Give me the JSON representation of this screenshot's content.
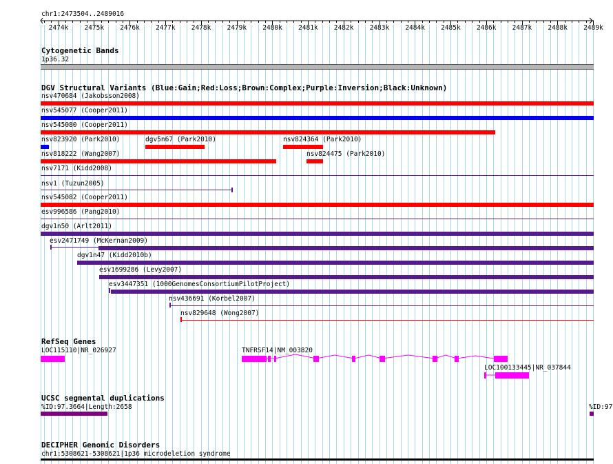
{
  "ruler": {
    "region_label": "chr1:2473504..2489016",
    "start": 2473504,
    "end": 2489016,
    "ticks": [
      "2474k",
      "2475k",
      "2476k",
      "2477k",
      "2478k",
      "2479k",
      "2480k",
      "2481k",
      "2482k",
      "2483k",
      "2484k",
      "2485k",
      "2486k",
      "2487k",
      "2488k",
      "2489k"
    ]
  },
  "tracks": {
    "cyto": {
      "title": "Cytogenetic Bands",
      "band_label": "1p36.32"
    },
    "dgv": {
      "title": "DGV Structural Variants (Blue:Gain;Red:Loss;Brown:Complex;Purple:Inversion;Black:Unknown)",
      "colors": {
        "gain": "#0000ee",
        "loss": "#ff0000",
        "inversion": "#551a8b"
      },
      "features": [
        {
          "label": "nsv470684 (Jakobsson2008)",
          "type": "loss"
        },
        {
          "label": "nsv545077 (Cooper2011)",
          "type": "gain"
        },
        {
          "label": "nsv545080 (Cooper2011)",
          "type": "loss"
        },
        {
          "label": "nsv823920 (Park2010)",
          "type": "gain"
        },
        {
          "label": "dgv5n67 (Park2010)",
          "type": "loss"
        },
        {
          "label": "nsv824364 (Park2010)",
          "type": "loss"
        },
        {
          "label": "nsv818222 (Wang2007)",
          "type": "loss"
        },
        {
          "label": "nsv824475 (Park2010)",
          "type": "loss"
        },
        {
          "label": "nsv7171 (Kidd2008)",
          "type": "inversion"
        },
        {
          "label": "nsv1 (Tuzun2005)",
          "type": "inversion"
        },
        {
          "label": "nsv545082 (Cooper2011)",
          "type": "loss"
        },
        {
          "label": "esv996586 (Pang2010)",
          "type": "inversion"
        },
        {
          "label": "dgv1n50 (Arlt2011)",
          "type": "inversion"
        },
        {
          "label": "esv2471749 (McKernan2009)",
          "type": "inversion"
        },
        {
          "label": "dgv1n47 (Kidd2010b)",
          "type": "inversion"
        },
        {
          "label": "esv1699286 (Levy2007)",
          "type": "inversion"
        },
        {
          "label": "esv3447351 (1000GenomesConsortiumPilotProject)",
          "type": "inversion"
        },
        {
          "label": "nsv436691 (Korbel2007)",
          "type": "inversion"
        },
        {
          "label": "nsv829648 (Wong2007)",
          "type": "loss"
        }
      ]
    },
    "refseq": {
      "title": "RefSeq Genes",
      "color": "#ff00ff",
      "genes": [
        {
          "label": "LOC115110|NR_026927"
        },
        {
          "label": "TNFRSF14|NM_003820"
        },
        {
          "label": "LOC100133445|NR_037844"
        }
      ]
    },
    "segdup": {
      "title": "UCSC segmental duplications",
      "color": "#800080",
      "features": [
        {
          "label": "%ID:97.3664|Length:2658"
        },
        {
          "label": "%ID:97"
        }
      ]
    },
    "decipher": {
      "title": "DECIPHER Genomic Disorders",
      "features": [
        {
          "label": "chr1:5308621-5308621|1p36 microdeletion syndrome"
        }
      ]
    }
  }
}
